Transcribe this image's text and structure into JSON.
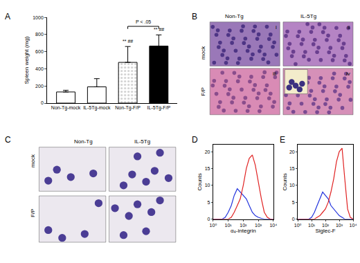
{
  "panel_labels": [
    "A",
    "B",
    "C",
    "D",
    "E"
  ],
  "chart_data": [
    {
      "type": "bar",
      "categories": [
        "Non-Tg-mock",
        "IL-5Tg-mock",
        "Non-Tg-F/P",
        "IL-5Tg-F/P"
      ],
      "values": [
        130,
        190,
        475,
        665
      ],
      "errors": [
        20,
        95,
        185,
        130
      ],
      "colors": [
        "#ffffff",
        "#ffffff",
        "#d0d0d0",
        "#000000"
      ],
      "y_label": "Spleen weight (mg)",
      "ylim": [
        0,
        1000
      ],
      "yticks": [
        0,
        200,
        400,
        600,
        800,
        1000
      ],
      "annotations": [
        {
          "category": "Non-Tg-F/P",
          "text": "** ##"
        },
        {
          "category": "IL-5Tg-F/P",
          "text": "** ##"
        }
      ],
      "comparison": {
        "from": "Non-Tg-F/P",
        "to": "IL-5Tg-F/P",
        "text": "P < .05"
      },
      "grid": false
    },
    {
      "type": "line",
      "x_label": "α₄-integrin",
      "y_label": "Counts",
      "x": [
        1,
        1.6,
        2.5,
        4,
        6.3,
        10,
        16,
        25,
        40,
        63,
        100,
        160,
        250,
        400,
        630,
        1000,
        1600,
        2500,
        4000,
        6300,
        10000
      ],
      "series": [
        {
          "color": "#2233dd",
          "values": [
            0,
            0,
            0,
            0,
            0.5,
            2,
            4,
            7,
            9,
            8,
            7,
            6,
            4,
            2,
            1,
            0.5,
            0.2,
            0,
            0,
            0,
            0
          ]
        },
        {
          "color": "#e02222",
          "values": [
            0,
            0,
            0,
            0,
            0,
            0,
            0.5,
            2,
            4,
            6,
            10,
            15,
            18,
            19,
            16,
            11,
            6,
            2,
            0.5,
            0,
            0
          ]
        }
      ],
      "log": "x",
      "xlim": [
        1,
        10000
      ],
      "xticks": [
        {
          "value": 1,
          "label": "10⁰"
        },
        {
          "value": 10,
          "label": "10¹"
        },
        {
          "value": 100,
          "label": "10²"
        },
        {
          "value": 1000,
          "label": "10³"
        },
        {
          "value": 10000,
          "label": "10⁴"
        }
      ],
      "ylim": [
        0,
        22
      ],
      "yticks": [
        0,
        5,
        10,
        15,
        20
      ],
      "grid": false
    },
    {
      "type": "line",
      "x_label": "Siglec-F",
      "y_label": "Counts",
      "x": [
        1,
        1.6,
        2.5,
        4,
        6.3,
        10,
        16,
        25,
        40,
        63,
        100,
        160,
        250,
        400,
        630,
        1000,
        1600,
        2500,
        4000,
        6300,
        10000
      ],
      "series": [
        {
          "color": "#2233dd",
          "values": [
            0,
            0,
            0,
            0,
            0,
            0.5,
            2,
            4,
            6,
            8,
            7,
            6,
            4,
            3,
            2,
            1,
            0.5,
            0,
            0,
            0,
            0
          ]
        },
        {
          "color": "#e02222",
          "values": [
            0,
            0,
            0,
            0,
            0,
            0,
            0,
            0.5,
            1,
            2,
            3,
            5,
            8,
            12,
            17,
            20,
            21,
            12,
            3,
            0.5,
            0
          ]
        }
      ],
      "log": "x",
      "xlim": [
        1,
        10000
      ],
      "xticks": [
        {
          "value": 1,
          "label": "10⁰"
        },
        {
          "value": 10,
          "label": "10¹"
        },
        {
          "value": 100,
          "label": "10²"
        },
        {
          "value": 1000,
          "label": "10³"
        },
        {
          "value": 10000,
          "label": "10⁴"
        }
      ],
      "ylim": [
        0,
        22
      ],
      "yticks": [
        0,
        5,
        10,
        15,
        20
      ],
      "grid": false
    }
  ],
  "micrographs": {
    "B": {
      "columns": [
        "Non-Tg",
        "IL-5Tg"
      ],
      "rows": [
        "mock",
        "F/P"
      ],
      "cells": [
        "i",
        "ii",
        "iii",
        "iv"
      ]
    },
    "C": {
      "columns": [
        "Non-Tg",
        "IL-5Tg"
      ],
      "rows": [
        "mock",
        "F/P"
      ]
    }
  }
}
